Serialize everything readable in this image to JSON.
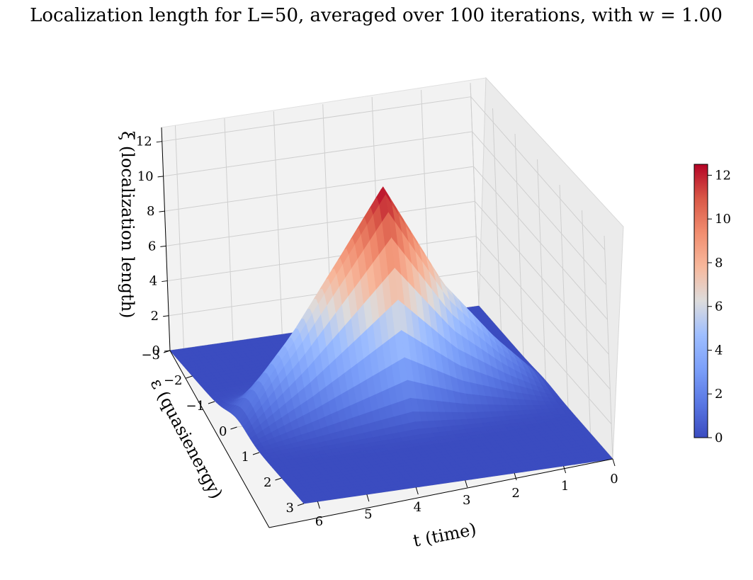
{
  "chart_data": {
    "type": "surface3d",
    "title": "Localization length for L=50, averaged over 100 iterations, with w = 1.00",
    "xlabel": "t   (time)",
    "ylabel": "ε   (quasienergy)",
    "zlabel": "ξ   (localization length)",
    "x_ticks": [
      "0",
      "1",
      "2",
      "3",
      "4",
      "5",
      "6"
    ],
    "y_ticks": [
      "−3",
      "−2",
      "−1",
      "0",
      "1",
      "2",
      "3"
    ],
    "z_ticks": [
      "0",
      "2",
      "4",
      "6",
      "8",
      "10",
      "12"
    ],
    "xlim": [
      0,
      6.28
    ],
    "ylim": [
      -3,
      3
    ],
    "zlim": [
      0,
      12.5
    ],
    "colorbar": {
      "colormap": "coolwarm",
      "range": [
        0,
        12.5
      ],
      "ticks": [
        "0",
        "2",
        "4",
        "6",
        "8",
        "10",
        "12"
      ]
    },
    "surface": {
      "description_points": [
        {
          "t": 0.0,
          "eps_peak": 0.0,
          "xi_peak": 0.1
        },
        {
          "t": 1.0,
          "eps_peak": 0.0,
          "xi_peak": 3.0
        },
        {
          "t": 2.0,
          "eps_peak": 0.0,
          "xi_peak": 6.5
        },
        {
          "t": 3.14,
          "eps_peak": 0.0,
          "xi_peak": 12.5
        },
        {
          "t": 4.0,
          "eps_peak": 0.0,
          "xi_peak": 9.0
        },
        {
          "t": 5.0,
          "eps_peak": 0.0,
          "xi_peak": 5.0
        },
        {
          "t": 6.28,
          "eps_peak": 0.0,
          "xi_peak": 0.5
        }
      ],
      "baseline": 0.0,
      "peak_width_eps": 0.45
    },
    "grid": true
  }
}
